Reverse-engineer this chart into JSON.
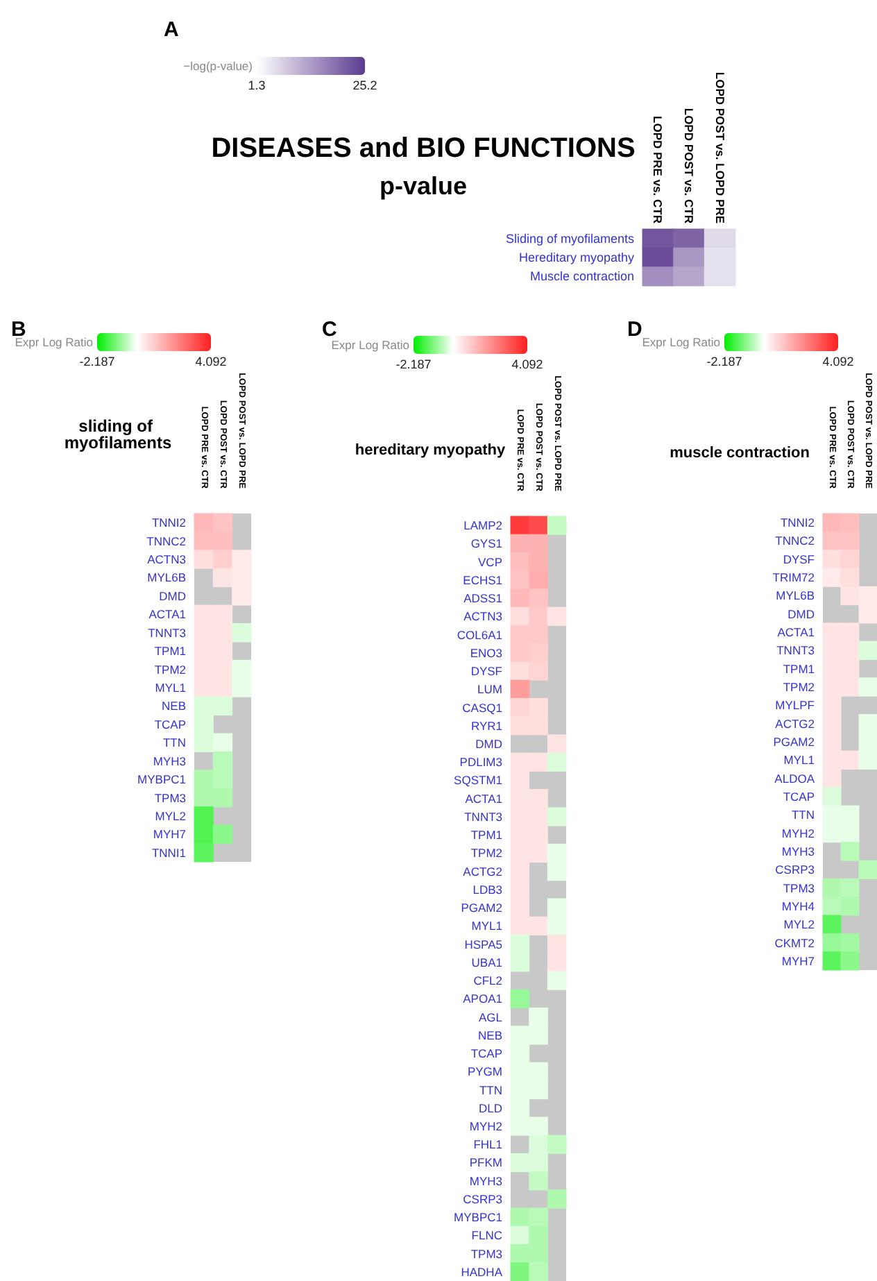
{
  "chart_data": [
    {
      "type": "heatmap",
      "title": "DISEASES and BIO FUNCTIONS",
      "subtitle": "p-value",
      "annotations": [
        "A"
      ],
      "clabel": "−log(p-value)",
      "clim": [
        1.3,
        25.2
      ],
      "cticks": [
        1.3,
        25.2
      ],
      "categories": [
        "LOPD PRE vs. CTR",
        "LOPD POST vs. CTR",
        "LOPD POST vs. LOPD PRE"
      ],
      "y_categories": [
        "Sliding of myofilaments",
        "Hereditary myopathy",
        "Muscle contraction"
      ],
      "cells": [
        [
          22,
          20,
          6
        ],
        [
          23,
          14,
          5
        ],
        [
          15,
          12,
          5
        ]
      ]
    },
    {
      "type": "heatmap",
      "title": "sliding of myofilaments",
      "annotations": [
        "B"
      ],
      "clabel": "Expr Log Ratio",
      "clim": [
        -2.187,
        4.092
      ],
      "cticks": [
        -2.187,
        4.092
      ],
      "categories": [
        "LOPD PRE vs. CTR",
        "LOPD POST vs. CTR",
        "LOPD POST vs. LOPD PRE"
      ],
      "y_categories": [
        "TNNI2",
        "TNNC2",
        "ACTN3",
        "MYL6B",
        "DMD",
        "ACTA1",
        "TNNT3",
        "TPM1",
        "TPM2",
        "MYL1",
        "NEB",
        "TCAP",
        "TTN",
        "MYH3",
        "MYBPC1",
        "TPM3",
        "MYL2",
        "MYH7",
        "TNNI1"
      ],
      "cells": [
        [
          1.3,
          1.1,
          null
        ],
        [
          1.2,
          1.2,
          null
        ],
        [
          0.6,
          0.9,
          0.4
        ],
        [
          null,
          0.5,
          0.4
        ],
        [
          null,
          null,
          0.4
        ],
        [
          0.5,
          0.5,
          null
        ],
        [
          0.5,
          0.5,
          -0.3
        ],
        [
          0.5,
          0.5,
          null
        ],
        [
          0.5,
          0.5,
          -0.2
        ],
        [
          0.5,
          0.5,
          -0.2
        ],
        [
          -0.3,
          -0.3,
          null
        ],
        [
          -0.3,
          null,
          null
        ],
        [
          -0.3,
          -0.2,
          null
        ],
        [
          null,
          -0.6,
          null
        ],
        [
          -0.7,
          -0.6,
          null
        ],
        [
          -0.7,
          -0.7,
          null
        ],
        [
          -1.5,
          null,
          null
        ],
        [
          -1.5,
          -1.0,
          null
        ],
        [
          -1.4,
          null,
          null
        ]
      ]
    },
    {
      "type": "heatmap",
      "title": "hereditary myopathy",
      "annotations": [
        "C"
      ],
      "clabel": "Expr Log Ratio",
      "clim": [
        -2.187,
        4.092
      ],
      "cticks": [
        -2.187,
        4.092
      ],
      "categories": [
        "LOPD PRE vs. CTR",
        "LOPD POST vs. CTR",
        "LOPD POST vs. LOPD PRE"
      ],
      "y_categories": [
        "LAMP2",
        "GYS1",
        "VCP",
        "ECHS1",
        "ADSS1",
        "ACTN3",
        "COL6A1",
        "ENO3",
        "DYSF",
        "LUM",
        "CASQ1",
        "RYR1",
        "DMD",
        "PDLIM3",
        "SQSTM1",
        "ACTA1",
        "TNNT3",
        "TPM1",
        "TPM2",
        "ACTG2",
        "LDB3",
        "PGAM2",
        "MYL1",
        "HSPA5",
        "UBA1",
        "CFL2",
        "APOA1",
        "AGL",
        "NEB",
        "TCAP",
        "PYGM",
        "TTN",
        "DLD",
        "MYH2",
        "FHL1",
        "PFKM",
        "MYH3",
        "CSRP3",
        "MYBPC1",
        "FLNC",
        "TPM3",
        "HADHA"
      ],
      "cells": [
        [
          3.6,
          3.3,
          -0.5
        ],
        [
          1.4,
          1.4,
          null
        ],
        [
          1.2,
          1.4,
          null
        ],
        [
          1.1,
          1.5,
          null
        ],
        [
          1.3,
          1.1,
          null
        ],
        [
          0.6,
          1.0,
          0.5
        ],
        [
          1.0,
          1.0,
          null
        ],
        [
          1.0,
          0.9,
          null
        ],
        [
          0.6,
          0.8,
          null
        ],
        [
          1.8,
          null,
          null
        ],
        [
          0.8,
          0.6,
          null
        ],
        [
          0.6,
          0.6,
          null
        ],
        [
          null,
          null,
          0.5
        ],
        [
          0.5,
          0.5,
          -0.3
        ],
        [
          0.5,
          null,
          null
        ],
        [
          0.5,
          0.5,
          null
        ],
        [
          0.5,
          0.5,
          -0.3
        ],
        [
          0.5,
          0.5,
          null
        ],
        [
          0.5,
          0.5,
          -0.2
        ],
        [
          0.5,
          null,
          -0.2
        ],
        [
          0.5,
          null,
          null
        ],
        [
          0.5,
          null,
          -0.2
        ],
        [
          0.5,
          0.5,
          -0.2
        ],
        [
          -0.3,
          null,
          0.5
        ],
        [
          -0.3,
          null,
          0.5
        ],
        [
          null,
          null,
          -0.2
        ],
        [
          -0.9,
          null,
          null
        ],
        [
          null,
          -0.2,
          null
        ],
        [
          -0.2,
          -0.2,
          null
        ],
        [
          -0.2,
          null,
          null
        ],
        [
          -0.2,
          -0.2,
          null
        ],
        [
          -0.2,
          -0.2,
          null
        ],
        [
          -0.2,
          null,
          null
        ],
        [
          -0.2,
          -0.2,
          null
        ],
        [
          null,
          -0.3,
          -0.5
        ],
        [
          -0.3,
          -0.3,
          null
        ],
        [
          null,
          -0.5,
          null
        ],
        [
          null,
          null,
          -0.7
        ],
        [
          -0.7,
          -0.6,
          null
        ],
        [
          -0.3,
          -0.7,
          null
        ],
        [
          -0.7,
          -0.7,
          null
        ],
        [
          -1.1,
          -0.6,
          null
        ]
      ]
    },
    {
      "type": "heatmap",
      "title": "muscle contraction",
      "annotations": [
        "D"
      ],
      "clabel": "Expr Log Ratio",
      "clim": [
        -2.187,
        4.092
      ],
      "cticks": [
        -2.187,
        4.092
      ],
      "categories": [
        "LOPD PRE vs. CTR",
        "LOPD POST vs. CTR",
        "LOPD POST vs. LOPD PRE"
      ],
      "y_categories": [
        "TNNI2",
        "TNNC2",
        "DYSF",
        "TRIM72",
        "MYL6B",
        "DMD",
        "ACTA1",
        "TNNT3",
        "TPM1",
        "TPM2",
        "MYLPF",
        "ACTG2",
        "PGAM2",
        "MYL1",
        "ALDOA",
        "TCAP",
        "TTN",
        "MYH2",
        "MYH3",
        "CSRP3",
        "TPM3",
        "MYH4",
        "MYL2",
        "CKMT2",
        "MYH7"
      ],
      "cells": [
        [
          1.3,
          1.2,
          null
        ],
        [
          1.1,
          1.1,
          null
        ],
        [
          0.6,
          0.8,
          null
        ],
        [
          0.4,
          0.6,
          null
        ],
        [
          null,
          0.5,
          0.4
        ],
        [
          null,
          null,
          0.4
        ],
        [
          0.5,
          0.5,
          null
        ],
        [
          0.5,
          0.5,
          -0.3
        ],
        [
          0.5,
          0.5,
          null
        ],
        [
          0.5,
          0.5,
          -0.2
        ],
        [
          0.5,
          null,
          null
        ],
        [
          0.5,
          null,
          -0.2
        ],
        [
          0.5,
          null,
          -0.2
        ],
        [
          0.5,
          0.5,
          -0.2
        ],
        [
          0.5,
          null,
          null
        ],
        [
          -0.3,
          null,
          null
        ],
        [
          -0.2,
          -0.2,
          null
        ],
        [
          -0.2,
          -0.2,
          null
        ],
        [
          null,
          -0.6,
          null
        ],
        [
          null,
          null,
          -0.6
        ],
        [
          -0.7,
          -0.6,
          null
        ],
        [
          -0.6,
          -0.7,
          null
        ],
        [
          -1.4,
          null,
          null
        ],
        [
          -0.9,
          -0.8,
          null
        ],
        [
          -1.4,
          -1.0,
          null
        ]
      ]
    }
  ]
}
